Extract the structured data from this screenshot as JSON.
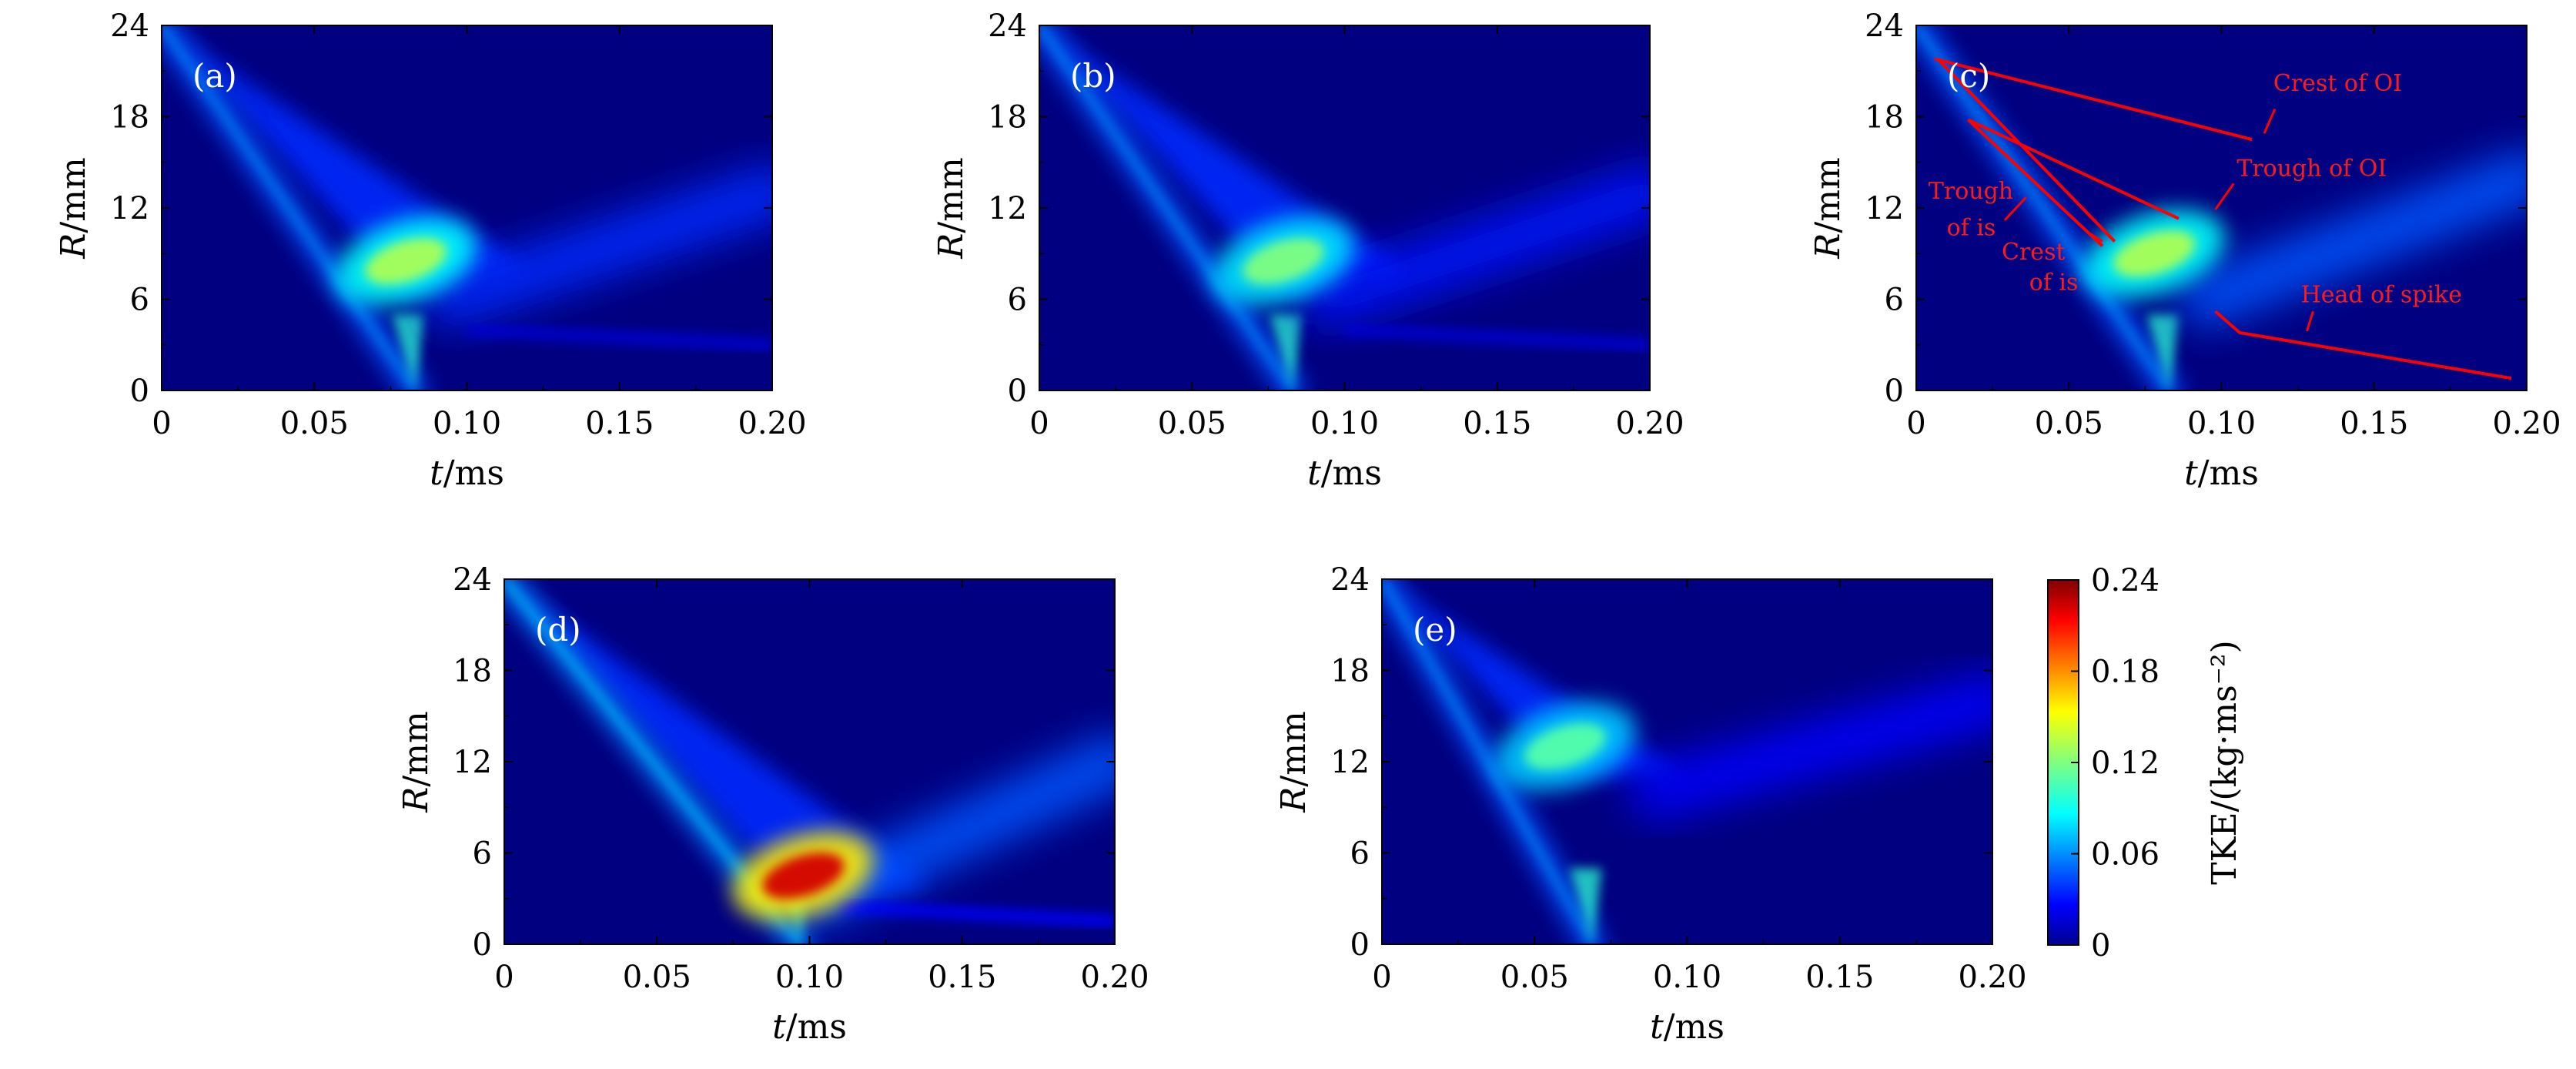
{
  "chart_data": {
    "type": "heatmap",
    "shared": {
      "xlabel_var": "t",
      "xlabel_unit": "/ms",
      "ylabel_var": "R",
      "ylabel_unit": "/mm",
      "xlim": [
        0,
        0.2
      ],
      "ylim": [
        0,
        24
      ],
      "xticks": [
        "0",
        "0.05",
        "0.10",
        "0.15",
        "0.20"
      ],
      "xtick_values": [
        0,
        0.05,
        0.1,
        0.15,
        0.2
      ],
      "yticks": [
        "0",
        "6",
        "12",
        "18",
        "24"
      ],
      "ytick_values": [
        0,
        6,
        12,
        18,
        24
      ]
    },
    "colorbar": {
      "title": "TKE/(kg·ms⁻²)",
      "range": [
        0,
        0.24
      ],
      "ticks": [
        "0",
        "0.06",
        "0.12",
        "0.18",
        "0.24"
      ],
      "tick_values": [
        0,
        0.06,
        0.12,
        0.18,
        0.24
      ],
      "colormap": "jet"
    },
    "panels": [
      {
        "label": "(a)",
        "features": [
          {
            "name": "incident shock band",
            "from": [
              0.0,
              24
            ],
            "to": [
              0.083,
              0
            ],
            "value": 0.05
          },
          {
            "name": "upper wedge edge",
            "from": [
              0.0,
              24
            ],
            "to": [
              0.12,
              8
            ],
            "value": 0.04
          },
          {
            "name": "interface mixing zone",
            "center": [
              0.08,
              8.5
            ],
            "value": 0.13
          },
          {
            "name": "reflected shock",
            "from": [
              0.095,
              6
            ],
            "to": [
              0.2,
              13
            ],
            "value": 0.04
          },
          {
            "name": "spike tail",
            "from": [
              0.1,
              4
            ],
            "to": [
              0.2,
              3
            ],
            "value": 0.02
          }
        ]
      },
      {
        "label": "(b)",
        "features": [
          {
            "name": "incident shock band",
            "from": [
              0.0,
              24
            ],
            "to": [
              0.083,
              0
            ],
            "value": 0.05
          },
          {
            "name": "upper wedge edge",
            "from": [
              0.0,
              24
            ],
            "to": [
              0.12,
              8
            ],
            "value": 0.04
          },
          {
            "name": "interface mixing zone",
            "center": [
              0.08,
              8.5
            ],
            "value": 0.12
          },
          {
            "name": "reflected shock",
            "from": [
              0.095,
              6
            ],
            "to": [
              0.2,
              13
            ],
            "value": 0.035
          },
          {
            "name": "spike tail",
            "from": [
              0.1,
              4
            ],
            "to": [
              0.2,
              3
            ],
            "value": 0.02
          }
        ]
      },
      {
        "label": "(c)",
        "features": [
          {
            "name": "incident shock band",
            "from": [
              0.0,
              24
            ],
            "to": [
              0.083,
              0
            ],
            "value": 0.05
          },
          {
            "name": "interface mixing zone",
            "center": [
              0.078,
              9
            ],
            "value": 0.13
          },
          {
            "name": "reflected shock",
            "from": [
              0.095,
              6
            ],
            "to": [
              0.2,
              14
            ],
            "value": 0.05
          }
        ],
        "annotations": [
          {
            "text": "Crest of OI",
            "line": [
              [
                0.006,
                21.8
              ],
              [
                0.11,
                16.5
              ]
            ],
            "text_pos": [
              0.117,
              19.7
            ]
          },
          {
            "text": "Trough of OI",
            "line": [
              [
                0.017,
                17.8
              ],
              [
                0.086,
                11.3
              ]
            ],
            "text_pos": [
              0.105,
              14.1
            ]
          },
          {
            "text": "Trough",
            "line": [
              [
                0.007,
                21.8
              ],
              [
                0.065,
                9.8
              ]
            ],
            "text_pos": [
              0.004,
              12.6
            ]
          },
          {
            "text": "of is",
            "text_pos": [
              0.01,
              10.2
            ]
          },
          {
            "text": "Crest",
            "line": [
              [
                0.017,
                17.8
              ],
              [
                0.061,
                9.5
              ]
            ],
            "text_pos": [
              0.028,
              8.6
            ]
          },
          {
            "text": "of is",
            "text_pos": [
              0.037,
              6.6
            ]
          },
          {
            "text": "Head of spike",
            "line": [
              [
                0.098,
                5.2
              ],
              [
                0.106,
                3.8
              ],
              [
                0.195,
                0.8
              ]
            ],
            "text_pos": [
              0.126,
              5.8
            ]
          }
        ]
      },
      {
        "label": "(d)",
        "features": [
          {
            "name": "incident shock band",
            "from": [
              0.0,
              24
            ],
            "to": [
              0.097,
              0
            ],
            "value": 0.06
          },
          {
            "name": "upper wedge edge",
            "from": [
              0.0,
              24
            ],
            "to": [
              0.14,
              4
            ],
            "value": 0.04
          },
          {
            "name": "interface mixing zone",
            "center": [
              0.098,
              4.5
            ],
            "value": 0.22
          },
          {
            "name": "reflected shock",
            "from": [
              0.102,
              3
            ],
            "to": [
              0.2,
              12
            ],
            "value": 0.05
          },
          {
            "name": "spike tail",
            "from": [
              0.11,
              2.5
            ],
            "to": [
              0.2,
              1.5
            ],
            "value": 0.03
          }
        ]
      },
      {
        "label": "(e)",
        "features": [
          {
            "name": "incident shock band",
            "from": [
              0.0,
              24
            ],
            "to": [
              0.069,
              0
            ],
            "value": 0.05
          },
          {
            "name": "upper wedge edge",
            "from": [
              0.0,
              24
            ],
            "to": [
              0.1,
              11
            ],
            "value": 0.04
          },
          {
            "name": "interface mixing zone",
            "center": [
              0.06,
              13
            ],
            "value": 0.11
          },
          {
            "name": "reflected shock",
            "from": [
              0.09,
              10
            ],
            "to": [
              0.2,
              16
            ],
            "value": 0.03
          }
        ]
      }
    ]
  }
}
